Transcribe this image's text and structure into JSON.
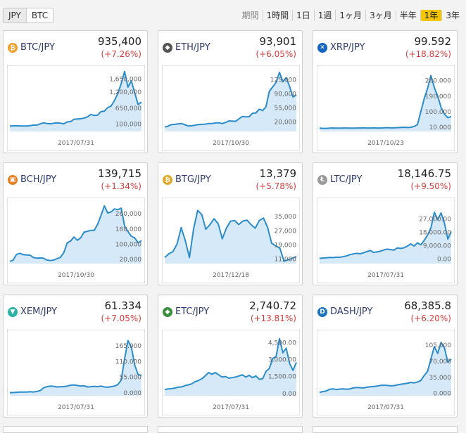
{
  "currency_toggle": [
    {
      "label": "JPY",
      "active": true
    },
    {
      "label": "BTC",
      "active": false
    }
  ],
  "periods": [
    {
      "label": "期間",
      "active": false,
      "dim": true
    },
    {
      "label": "1時間",
      "active": false
    },
    {
      "label": "1日",
      "active": false
    },
    {
      "label": "1週",
      "active": false
    },
    {
      "label": "1ヶ月",
      "active": false
    },
    {
      "label": "3ヶ月",
      "active": false
    },
    {
      "label": "半年",
      "active": false
    },
    {
      "label": "1年",
      "active": true
    },
    {
      "label": "3年",
      "active": false
    }
  ],
  "colors": {
    "line": "#2b8ccc",
    "fill": "#d6e9f8",
    "change": "#d23c3c",
    "active_period": "#f3c600"
  },
  "cards": [
    {
      "pair": "BTC/JPY",
      "price": "935,400",
      "change": "(+7.26%)",
      "icon": "bitcoin-icon",
      "icon_color": "#f2a02c",
      "icon_glyph": "₿",
      "chart_data": {
        "type": "area",
        "x_label": "2017/07/31",
        "y_ticks": [
          "1,650,000",
          "1,200,000",
          "650,000",
          "100,000"
        ],
        "tick_values": [
          1650000,
          1200000,
          650000,
          100000
        ],
        "ylim": [
          -150000,
          1950000
        ],
        "values": [
          38000,
          46000,
          44000,
          41000,
          36000,
          37000,
          49000,
          71000,
          68000,
          110000,
          145000,
          122000,
          113000,
          132000,
          145000,
          135000,
          112000,
          179000,
          188000,
          268000,
          278000,
          286000,
          306000,
          353000,
          433000,
          398000,
          413000,
          534000,
          548000,
          671000,
          723000,
          912000,
          1155000,
          1493000,
          1910000,
          1374000,
          1588000,
          1180000,
          774000,
          860000
        ]
      }
    },
    {
      "pair": "ETH/JPY",
      "price": "93,901",
      "change": "(+6.05%)",
      "icon": "ethereum-icon",
      "icon_color": "#555555",
      "icon_glyph": "◆",
      "chart_data": {
        "type": "area",
        "x_label": "2017/10/30",
        "y_ticks": [
          "125,000",
          "90,000",
          "55,000",
          "20,000"
        ],
        "tick_values": [
          125000,
          90000,
          55000,
          20000
        ],
        "ylim": [
          -3000,
          148000
        ],
        "values": [
          8000,
          10000,
          14000,
          14500,
          15500,
          16500,
          13500,
          10500,
          11000,
          12500,
          14000,
          14500,
          15000,
          16500,
          16500,
          18000,
          18500,
          16500,
          19000,
          23000,
          22500,
          22000,
          28000,
          34000,
          33000,
          33500,
          42000,
          42500,
          52000,
          48500,
          58000,
          96000,
          107000,
          118000,
          143000,
          120000,
          130000,
          108000,
          82000,
          87000
        ]
      }
    },
    {
      "pair": "XRP/JPY",
      "price": "99.592",
      "change": "(+18.82%)",
      "icon": "ripple-icon",
      "icon_color": "#1565c0",
      "icon_glyph": "✕",
      "chart_data": {
        "type": "area",
        "x_label": "2017/10/23",
        "y_ticks": [
          "280.000",
          "190.000",
          "100.000",
          "10.000"
        ],
        "tick_values": [
          280,
          190,
          100,
          10
        ],
        "ylim": [
          -15,
          340
        ],
        "values": [
          4,
          3,
          3,
          4,
          5,
          4,
          4,
          5,
          5,
          4,
          4,
          5,
          5,
          6,
          5,
          5,
          6,
          5,
          5,
          6,
          7,
          6,
          6,
          7,
          8,
          9,
          8,
          9,
          14,
          25,
          100,
          175,
          235,
          310,
          240,
          190,
          125,
          85,
          65,
          72
        ]
      }
    },
    {
      "pair": "BCH/JPY",
      "price": "139,715",
      "change": "(+1.34%)",
      "icon": "bitcoin-cash-icon",
      "icon_color": "#e67e22",
      "icon_glyph": "▣",
      "chart_data": {
        "type": "area",
        "x_label": "2017/10/30",
        "y_ticks": [
          "260,000",
          "180,000",
          "100,000",
          "20,000"
        ],
        "tick_values": [
          260000,
          180000,
          100000,
          20000
        ],
        "ylim": [
          -2000,
          320000
        ],
        "values": [
          9000,
          17000,
          47000,
          52000,
          45000,
          43000,
          42000,
          30000,
          27000,
          28000,
          26000,
          17000,
          14000,
          17000,
          24000,
          31000,
          56000,
          107000,
          117000,
          138000,
          121000,
          134000,
          164000,
          168000,
          173000,
          173000,
          205000,
          252000,
          302000,
          264000,
          270000,
          286000,
          282000,
          290000,
          196000,
          166000,
          142000,
          133000,
          108000,
          119000
        ]
      }
    },
    {
      "pair": "BTG/JPY",
      "price": "13,379",
      "change": "(+5.78%)",
      "icon": "bitcoin-gold-icon",
      "icon_color": "#e0a828",
      "icon_glyph": "₿",
      "chart_data": {
        "type": "area",
        "x_label": "2017/12/18",
        "y_ticks": [
          "35,000",
          "27,000",
          "19,000",
          "11,000"
        ],
        "tick_values": [
          35000,
          27000,
          19000,
          11000
        ],
        "ylim": [
          8500,
          43000
        ],
        "values": [
          12000,
          14000,
          15300,
          19500,
          28800,
          21500,
          11900,
          27800,
          38500,
          36200,
          27900,
          30500,
          33800,
          31000,
          22500,
          28600,
          32400,
          32800,
          30500,
          32500,
          33000,
          30500,
          28500,
          32800,
          34200,
          29000,
          20000,
          18500,
          17200,
          9900,
          10600,
          11500,
          12500
        ]
      }
    },
    {
      "pair": "LTC/JPY",
      "price": "18,146.75",
      "change": "(+9.50%)",
      "icon": "litecoin-icon",
      "icon_color": "#9a9a9a",
      "icon_glyph": "Ł",
      "chart_data": {
        "type": "area",
        "x_label": "2017/07/31",
        "y_ticks": [
          "27,000.00",
          "18,000.00",
          "9,000.00",
          "0.00"
        ],
        "tick_values": [
          27000,
          18000,
          9000,
          0
        ],
        "ylim": [
          -3000,
          38000
        ],
        "values": [
          500,
          750,
          900,
          1100,
          1000,
          1300,
          1250,
          1600,
          2200,
          3000,
          3500,
          3900,
          3600,
          4200,
          5000,
          5800,
          4500,
          4800,
          5300,
          6100,
          6700,
          6400,
          6000,
          7500,
          7200,
          7600,
          8700,
          10200,
          8800,
          10900,
          9600,
          12500,
          16200,
          21000,
          31500,
          26500,
          31000,
          24000,
          13500,
          18500
        ]
      }
    },
    {
      "pair": "XEM/JPY",
      "price": "61.334",
      "change": "(+7.05%)",
      "icon": "nem-icon",
      "icon_color": "#2ab3a6",
      "icon_glyph": "▼",
      "chart_data": {
        "type": "area",
        "x_label": "2017/07/31",
        "y_ticks": [
          "165.000",
          "110.000",
          "55.000",
          "0.000"
        ],
        "tick_values": [
          165,
          110,
          55,
          0
        ],
        "ylim": [
          -10,
          205
        ],
        "values": [
          1,
          1,
          2,
          3,
          3,
          3,
          4,
          3,
          5,
          8,
          18,
          22,
          24,
          23,
          21,
          22,
          22,
          24,
          27,
          28,
          26,
          24,
          25,
          21,
          22,
          23,
          22,
          24,
          21,
          20,
          22,
          24,
          29,
          45,
          120,
          184,
          161,
          98,
          64,
          62
        ]
      }
    },
    {
      "pair": "ETC/JPY",
      "price": "2,740.72",
      "change": "(+13.81%)",
      "icon": "ethereum-classic-icon",
      "icon_color": "#3c8f3c",
      "icon_glyph": "◆",
      "chart_data": {
        "type": "area",
        "x_label": "2017/07/31",
        "y_ticks": [
          "4,500.00",
          "3,000.00",
          "1,500.00",
          "0.00"
        ],
        "tick_values": [
          4500,
          3000,
          1500,
          0
        ],
        "ylim": [
          -200,
          5200
        ],
        "values": [
          350,
          400,
          420,
          480,
          560,
          580,
          700,
          760,
          850,
          1050,
          1150,
          1300,
          1550,
          1850,
          1700,
          1850,
          1650,
          1450,
          1500,
          1350,
          1400,
          1450,
          1550,
          1650,
          1450,
          1600,
          1400,
          1550,
          1250,
          1300,
          1950,
          2200,
          3100,
          3250,
          4850,
          3600,
          4000,
          2650,
          2050,
          2750
        ]
      }
    },
    {
      "pair": "DASH/JPY",
      "price": "68,385.8",
      "change": "(+6.20%)",
      "icon": "dash-icon",
      "icon_color": "#1c75bc",
      "icon_glyph": "D",
      "chart_data": {
        "type": "area",
        "x_label": "2017/07/31",
        "y_ticks": [
          "105,000",
          "70,000",
          "35,000",
          "0.000"
        ],
        "tick_values": [
          105000,
          70000,
          35000,
          0
        ],
        "ylim": [
          -5000,
          128000
        ],
        "values": [
          2500,
          4000,
          5500,
          9000,
          10000,
          8500,
          9500,
          10000,
          9000,
          10000,
          12000,
          13000,
          12500,
          12000,
          13500,
          14500,
          15000,
          16000,
          17500,
          18000,
          17500,
          16500,
          17000,
          18500,
          20000,
          21000,
          22000,
          24000,
          23000,
          25000,
          28000,
          39000,
          48000,
          75000,
          102000,
          87000,
          111000,
          99000,
          68000,
          75000
        ]
      }
    }
  ]
}
